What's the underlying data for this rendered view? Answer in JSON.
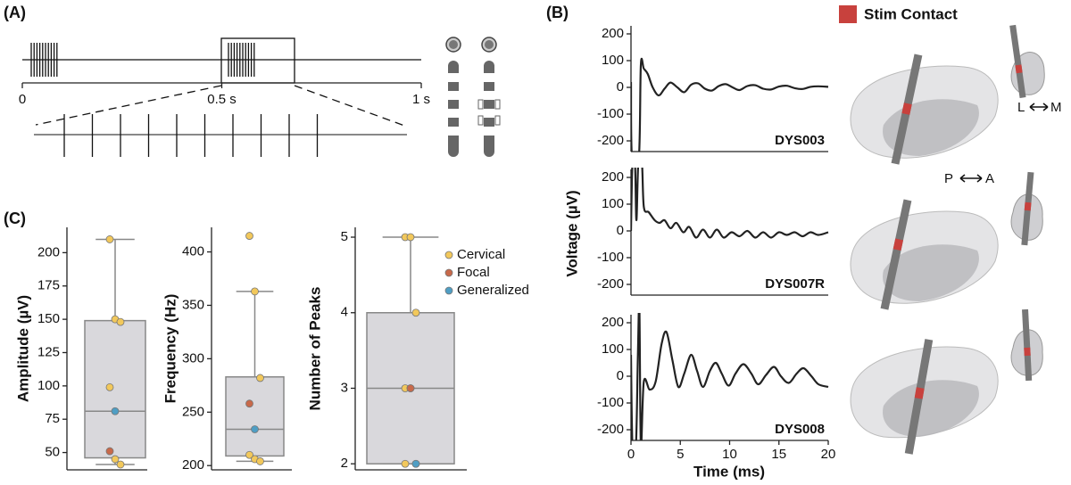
{
  "figure": {
    "panel_a": {
      "label": "(A)",
      "ticks": [
        0,
        {
          "value": 0.5,
          "label": "0.5 s"
        },
        {
          "value": 1,
          "label": "1 s"
        }
      ]
    },
    "panel_b": {
      "label": "(B)",
      "legend": "Stim Contact",
      "legend_color": "#c8413d",
      "ylabel": "Voltage (µV)",
      "xlabel": "Time (ms)",
      "axis_labels": [
        "P",
        "A",
        "L",
        "M"
      ]
    },
    "panel_c": {
      "label": "(C)"
    }
  },
  "chart_data": [
    {
      "type": "line",
      "label": "DYS003",
      "color": "#222222",
      "xlim": [
        0,
        20
      ],
      "ylim": [
        -240,
        230
      ],
      "yticks": [
        -200,
        -100,
        0,
        100,
        200
      ],
      "x": [
        0,
        0.1,
        0.8,
        1.0,
        1.3,
        1.7,
        2.2,
        2.8,
        3.4,
        4.0,
        4.7,
        5.4,
        6.1,
        6.8,
        7.5,
        8.2,
        8.9,
        9.6,
        10.3,
        11.0,
        11.8,
        12.6,
        13.4,
        14.2,
        15.0,
        15.8,
        16.6,
        17.4,
        18.2,
        19.0,
        20
      ],
      "values": [
        20,
        -260,
        -260,
        85,
        70,
        50,
        0,
        -30,
        -5,
        18,
        0,
        -18,
        10,
        15,
        -5,
        -12,
        5,
        12,
        0,
        -10,
        5,
        8,
        -5,
        -8,
        3,
        6,
        -3,
        -6,
        2,
        4,
        2
      ]
    },
    {
      "type": "line",
      "label": "DYS007R",
      "color": "#222222",
      "xlim": [
        0,
        20
      ],
      "ylim": [
        -240,
        230
      ],
      "yticks": [
        -200,
        -100,
        0,
        100,
        200
      ],
      "x": [
        0,
        0.15,
        0.4,
        0.55,
        0.75,
        1.1,
        1.3,
        1.8,
        2.4,
        2.9,
        3.4,
        4.0,
        4.6,
        5.3,
        5.9,
        6.6,
        7.3,
        8.0,
        8.7,
        9.4,
        10.2,
        11.0,
        11.8,
        12.6,
        13.4,
        14.2,
        15.0,
        15.8,
        16.6,
        17.4,
        18.2,
        19.0,
        20
      ],
      "values": [
        0,
        260,
        260,
        40,
        260,
        260,
        90,
        70,
        40,
        30,
        40,
        10,
        30,
        -5,
        15,
        -25,
        5,
        -25,
        5,
        -25,
        -5,
        -20,
        0,
        -25,
        -5,
        -25,
        -5,
        -15,
        -5,
        -20,
        -5,
        -15,
        -5
      ]
    },
    {
      "type": "line",
      "label": "DYS008",
      "color": "#222222",
      "xlim": [
        0,
        20
      ],
      "ylim": [
        -240,
        230
      ],
      "yticks": [
        -200,
        -100,
        0,
        100,
        200
      ],
      "xticks": [
        0,
        5,
        10,
        15,
        20
      ],
      "x": [
        0,
        0.15,
        0.5,
        0.7,
        0.85,
        1.0,
        1.3,
        1.9,
        2.5,
        3.1,
        3.6,
        4.2,
        4.8,
        5.4,
        6.1,
        6.7,
        7.3,
        8.0,
        8.6,
        9.2,
        9.9,
        10.6,
        11.4,
        12.2,
        12.9,
        13.7,
        14.5,
        15.2,
        16.0,
        16.8,
        17.5,
        18.3,
        19.0,
        20
      ],
      "values": [
        80,
        -260,
        -260,
        80,
        260,
        -260,
        -20,
        -50,
        -20,
        120,
        165,
        60,
        -40,
        10,
        80,
        20,
        -40,
        20,
        50,
        10,
        -35,
        10,
        45,
        10,
        -30,
        5,
        35,
        0,
        -25,
        10,
        30,
        0,
        -30,
        -40
      ]
    },
    {
      "type": "box",
      "ylabel": "Amplitude (µV)",
      "ylim": [
        37,
        219
      ],
      "yticks": [
        50,
        75,
        100,
        125,
        150,
        175,
        200
      ],
      "box": {
        "whislo": 41,
        "q1": 46,
        "med": 81,
        "q3": 149,
        "whishi": 210
      },
      "groups": [
        [
          210,
          150,
          148,
          99,
          45,
          41
        ],
        [
          51
        ],
        [
          81
        ]
      ]
    },
    {
      "type": "box",
      "ylabel": "Frequency (Hz)",
      "ylim": [
        196,
        423
      ],
      "yticks": [
        200,
        250,
        300,
        350,
        400
      ],
      "box": {
        "whislo": 204,
        "q1": 209,
        "med": 234,
        "q3": 283,
        "whishi": 363
      },
      "groups": [
        [
          415,
          363,
          282,
          210,
          206,
          204
        ],
        [
          258
        ],
        [
          234
        ]
      ]
    },
    {
      "type": "box",
      "ylabel": "Number of Peaks",
      "ylim": [
        1.92,
        5.13
      ],
      "yticks": [
        2,
        3,
        4,
        5
      ],
      "box": {
        "whislo": 2,
        "q1": 2,
        "med": 3,
        "q3": 4,
        "whishi": 5
      },
      "series": [
        {
          "name": "Cervical",
          "color": "#f2c85b",
          "values": [
            5,
            5,
            4,
            3,
            3,
            2,
            2
          ]
        },
        {
          "name": "Focal",
          "color": "#c8694a",
          "values": [
            3
          ]
        },
        {
          "name": "Generalized",
          "color": "#4f9ec4",
          "values": [
            2
          ]
        }
      ]
    }
  ]
}
